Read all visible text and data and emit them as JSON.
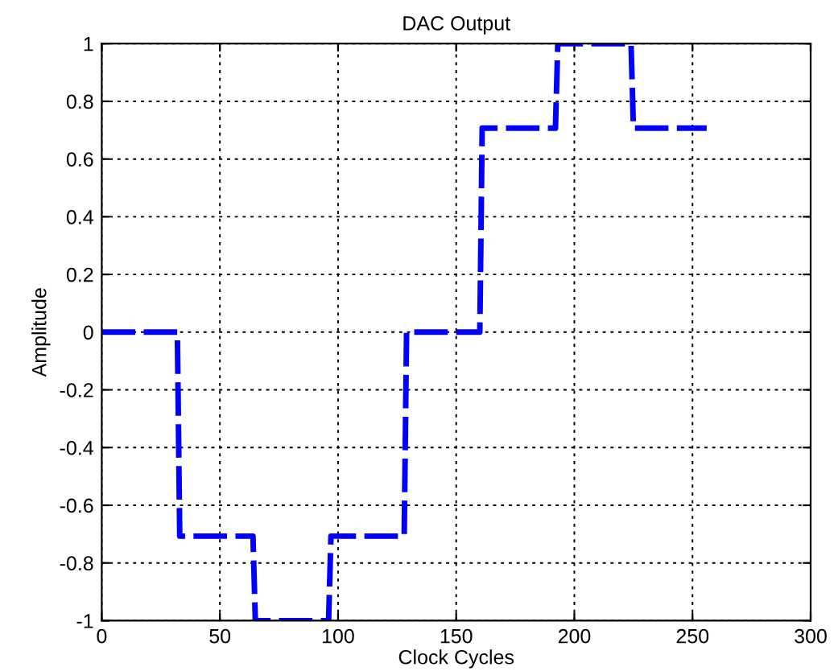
{
  "chart_data": {
    "type": "line",
    "title": "DAC Output",
    "xlabel": "Clock Cycles",
    "ylabel": "Amplitude",
    "series": [
      {
        "color": "#0000ff",
        "line_style": "dashed",
        "x": [
          0,
          32,
          33,
          64,
          65,
          96,
          97,
          128,
          129,
          160,
          161,
          192,
          193,
          224,
          225,
          256
        ],
        "values": [
          0,
          0,
          -0.707,
          -0.707,
          -1,
          -1,
          -0.707,
          -0.707,
          0,
          0,
          0.707,
          0.707,
          1,
          1,
          0.707,
          0.707
        ]
      }
    ],
    "xlim": [
      0,
      300
    ],
    "xticks": [
      0,
      50,
      100,
      150,
      200,
      250,
      300
    ],
    "ylim": [
      -1,
      1
    ],
    "yticks": [
      -1,
      -0.8,
      -0.6,
      -0.4,
      -0.2,
      0,
      0.2,
      0.4,
      0.6,
      0.8,
      1
    ],
    "grid": true,
    "marker": "none"
  }
}
